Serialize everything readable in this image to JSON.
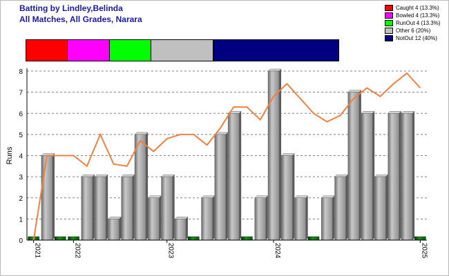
{
  "title_line1": "Batting by Lindley,Belinda",
  "title_line2": "All Matches, All Grades, Narara",
  "legend": [
    {
      "label": "Caught 4 (13.3%)",
      "color": "#ff0000"
    },
    {
      "label": "Bowled 4 (13.3%)",
      "color": "#ff00ff"
    },
    {
      "label": "RunOut 4 (13.3%)",
      "color": "#00ff00"
    },
    {
      "label": "Other 6 (20%)",
      "color": "#c0c0c0"
    },
    {
      "label": "NotOut 12 (40%)",
      "color": "#000080"
    }
  ],
  "chart_data": {
    "type": "bar",
    "ylabel": "Runs",
    "ylim": [
      0,
      8
    ],
    "yticks": [
      0,
      1,
      2,
      3,
      4,
      5,
      6,
      7,
      8
    ],
    "grid": true,
    "grid_style": "dashed",
    "dismissal_summary": [
      {
        "name": "Caught",
        "count": 4,
        "percent": 13.3,
        "color": "#ff0000"
      },
      {
        "name": "Bowled",
        "count": 4,
        "percent": 13.3,
        "color": "#ff00ff"
      },
      {
        "name": "RunOut",
        "count": 4,
        "percent": 13.3,
        "color": "#00ff00"
      },
      {
        "name": "Other",
        "count": 6,
        "percent": 20,
        "color": "#c0c0c0"
      },
      {
        "name": "NotOut",
        "count": 12,
        "percent": 40,
        "color": "#000080"
      }
    ],
    "innings_runs": [
      0,
      4,
      0,
      0,
      3,
      3,
      1,
      3,
      5,
      2,
      3,
      1,
      0,
      2,
      5,
      6,
      0,
      2,
      8,
      4,
      2,
      0,
      2,
      3,
      7,
      6,
      3,
      6,
      6,
      0
    ],
    "innings_colors": {
      "scored": "#a0a0a0",
      "zero": "#006400"
    },
    "trend_line": [
      0,
      4,
      4,
      4,
      3.5,
      5,
      3.6,
      3.5,
      4.7,
      4.2,
      4.8,
      5,
      5,
      4.5,
      5.3,
      6.3,
      6.3,
      5.7,
      6.8,
      7.4,
      6.7,
      6,
      5.6,
      5.9,
      6.7,
      7.2,
      6.8,
      7.4,
      7.9,
      7.2
    ],
    "trend_color": "#f08040",
    "x_tick_labels": [
      {
        "label": "2021",
        "index": 0
      },
      {
        "label": "2022",
        "index": 3
      },
      {
        "label": "2023",
        "index": 10
      },
      {
        "label": "2024",
        "index": 18
      },
      {
        "label": "2025",
        "index": 29
      }
    ]
  }
}
